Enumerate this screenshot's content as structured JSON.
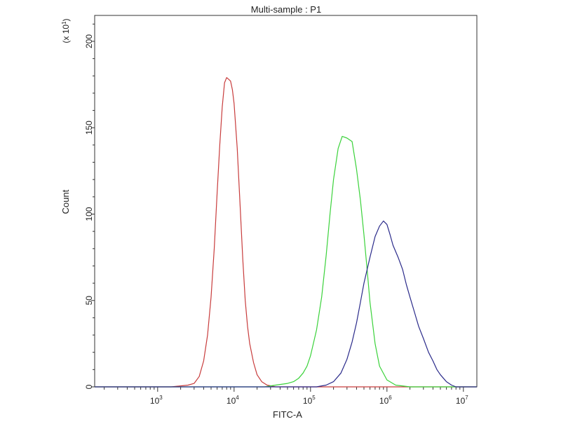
{
  "chart_data": {
    "type": "line",
    "title": "Multi-sample : P1",
    "xlabel": "FITC-A",
    "ylabel": "Count",
    "y_multiplier_label": "(x 10",
    "y_multiplier_exp": "1",
    "y_multiplier_close": ")",
    "x_scale": "log",
    "xlim": [
      150,
      15000000
    ],
    "ylim": [
      0,
      2150
    ],
    "grid": false,
    "x_ticks": [
      {
        "base": "10",
        "exp": "3",
        "value": 1000
      },
      {
        "base": "10",
        "exp": "4",
        "value": 10000
      },
      {
        "base": "10",
        "exp": "5",
        "value": 100000
      },
      {
        "base": "10",
        "exp": "6",
        "value": 1000000
      },
      {
        "base": "10",
        "exp": "7",
        "value": 10000000
      }
    ],
    "y_ticks": [
      {
        "label": "0",
        "value": 0
      },
      {
        "label": "50",
        "value": 500
      },
      {
        "label": "100",
        "value": 1000
      },
      {
        "label": "150",
        "value": 1500
      },
      {
        "label": "200",
        "value": 2000
      }
    ],
    "series": [
      {
        "color": "#c83c3c",
        "x": [
          150,
          1500,
          2500,
          3000,
          3500,
          4000,
          4500,
          5000,
          5500,
          6000,
          6500,
          7000,
          7500,
          8000,
          8500,
          9000,
          9500,
          10000,
          11000,
          12000,
          13000,
          14000,
          15000,
          16000,
          18000,
          20000,
          23000,
          27000,
          35000,
          50000,
          100000,
          15000000
        ],
        "y": [
          0,
          0,
          10,
          20,
          60,
          150,
          300,
          520,
          800,
          1120,
          1400,
          1620,
          1760,
          1790,
          1780,
          1770,
          1720,
          1640,
          1380,
          1050,
          740,
          500,
          350,
          250,
          140,
          70,
          30,
          10,
          0,
          0,
          0,
          0
        ]
      },
      {
        "color": "#3ad23a",
        "x": [
          150,
          25000,
          35000,
          50000,
          60000,
          70000,
          80000,
          90000,
          100000,
          120000,
          140000,
          160000,
          180000,
          200000,
          230000,
          260000,
          300000,
          350000,
          400000,
          450000,
          500000,
          550000,
          600000,
          700000,
          800000,
          1000000,
          1300000,
          2000000,
          15000000
        ],
        "y": [
          0,
          0,
          10,
          20,
          30,
          50,
          80,
          120,
          180,
          330,
          520,
          760,
          1000,
          1200,
          1380,
          1450,
          1440,
          1420,
          1260,
          1080,
          880,
          680,
          490,
          250,
          120,
          40,
          10,
          0,
          0
        ]
      },
      {
        "color": "#2a2a8a",
        "x": [
          150,
          120000,
          160000,
          200000,
          250000,
          300000,
          350000,
          400000,
          450000,
          500000,
          600000,
          700000,
          800000,
          900000,
          1000000,
          1100000,
          1200000,
          1400000,
          1600000,
          1800000,
          2000000,
          2300000,
          2600000,
          3000000,
          3500000,
          4000000,
          4500000,
          5000000,
          6000000,
          7000000,
          8000000,
          15000000
        ],
        "y": [
          0,
          0,
          10,
          30,
          80,
          160,
          260,
          370,
          490,
          600,
          750,
          870,
          930,
          960,
          940,
          880,
          820,
          750,
          680,
          590,
          520,
          430,
          350,
          280,
          200,
          150,
          100,
          70,
          30,
          10,
          0,
          0
        ]
      }
    ]
  }
}
